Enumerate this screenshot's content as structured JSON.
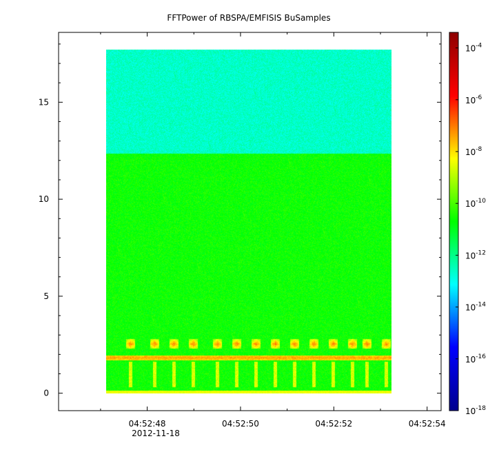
{
  "chart_data": {
    "type": "heatmap",
    "title": "FFTPower of RBSPA/EMFISIS  BuSamples",
    "xlabel": "",
    "ylabel": "",
    "x": {
      "axis": "time",
      "date_label": "2012-11-18",
      "ticks": [
        "04:52:48",
        "04:52:50",
        "04:52:52",
        "04:52:54"
      ],
      "minor_ticks": [
        "04:52:47",
        "04:52:49",
        "04:52:51",
        "04:52:53"
      ],
      "range": [
        "04:52:46.1",
        "04:52:54.3"
      ],
      "data_range": [
        "04:52:47.1",
        "04:52:53.0"
      ]
    },
    "y": {
      "ticks": [
        "0",
        "5",
        "10",
        "15"
      ],
      "tick_values": [
        0,
        5,
        10,
        15
      ],
      "range": [
        -0.9,
        18.6
      ],
      "data_range": [
        0,
        17.5
      ]
    },
    "z": {
      "scale": "log",
      "colorbar_ticks": [
        {
          "base": "10",
          "exp": "-4",
          "value": -4
        },
        {
          "base": "10",
          "exp": "-6",
          "value": -6
        },
        {
          "base": "10",
          "exp": "-8",
          "value": -8
        },
        {
          "base": "10",
          "exp": "-10",
          "value": -10
        },
        {
          "base": "10",
          "exp": "-12",
          "value": -12
        },
        {
          "base": "10",
          "exp": "-14",
          "value": -14
        },
        {
          "base": "10",
          "exp": "-16",
          "value": -16
        },
        {
          "base": "10",
          "exp": "-18",
          "value": -18
        }
      ],
      "range_log10": [
        -18,
        -3.4
      ],
      "colormap": [
        "#00008f",
        "#0000ff",
        "#00ffff",
        "#00ff00",
        "#ffff00",
        "#ff0000",
        "#8f0000"
      ]
    },
    "features": {
      "background_low_log10": -10.6,
      "background_high_log10": -12.6,
      "band_transition_freq": 12.2,
      "horizontal_line": {
        "freq": 1.8,
        "log10": -7.4
      },
      "lower_band_freq": 2.5,
      "burst_times": [
        "04:52:47.6",
        "04:52:48.1",
        "04:52:48.5",
        "04:52:48.9",
        "04:52:49.4",
        "04:52:49.8",
        "04:52:50.2",
        "04:52:50.6",
        "04:52:51.0",
        "04:52:51.4",
        "04:52:51.8",
        "04:52:52.2",
        "04:52:52.5",
        "04:52:52.9"
      ]
    },
    "legend": "colorbar-right",
    "grid": false
  }
}
